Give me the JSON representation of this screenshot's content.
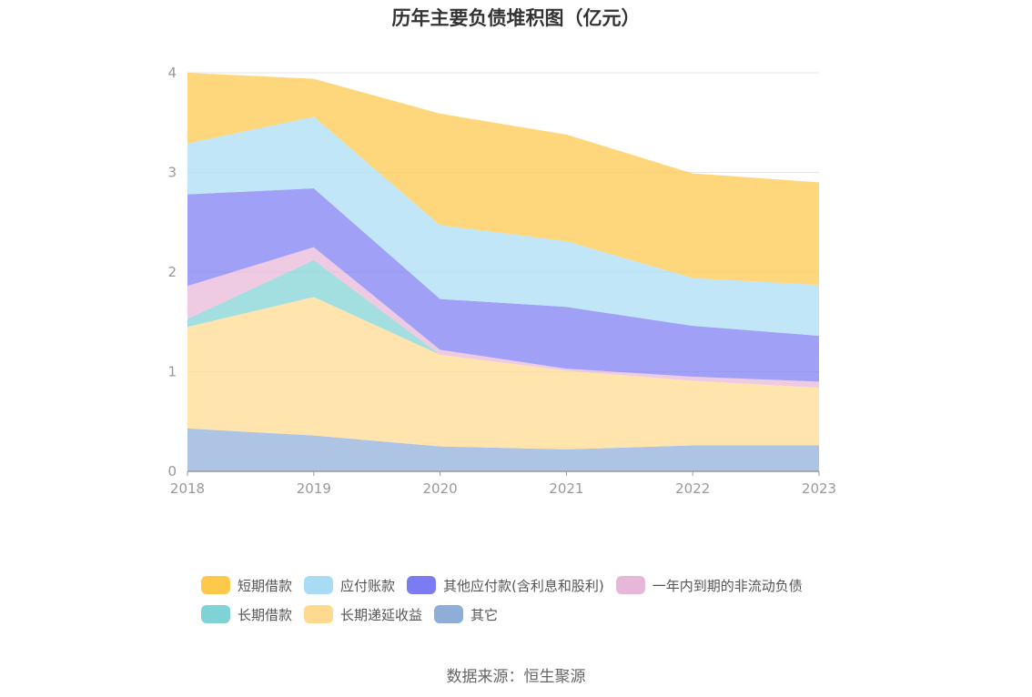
{
  "title": "历年主要负债堆积图（亿元）",
  "source": "数据来源：恒生聚源",
  "chart_data": {
    "type": "area",
    "stacked": true,
    "x": [
      "2018",
      "2019",
      "2020",
      "2021",
      "2022",
      "2023"
    ],
    "ylim": [
      0,
      4
    ],
    "yticks": [
      "0",
      "1",
      "2",
      "3",
      "4"
    ],
    "grid": true,
    "legend_position": "bottom",
    "series": [
      {
        "name": "其它",
        "color": "#8fadd9",
        "values": [
          0.43,
          0.36,
          0.25,
          0.22,
          0.26,
          0.26
        ]
      },
      {
        "name": "长期递延收益",
        "color": "#ffd98f",
        "values": [
          1.02,
          1.39,
          0.92,
          0.79,
          0.65,
          0.58
        ]
      },
      {
        "name": "长期借款",
        "color": "#7fd3d4",
        "values": [
          0.08,
          0.37,
          0.0,
          0.0,
          0.0,
          0.0
        ]
      },
      {
        "name": "一年内到期的非流动负债",
        "color": "#e8b6d8",
        "values": [
          0.33,
          0.13,
          0.05,
          0.02,
          0.04,
          0.06
        ]
      },
      {
        "name": "其他应付款(含利息和股利)",
        "color": "#7b7cf2",
        "values": [
          0.92,
          0.59,
          0.51,
          0.62,
          0.51,
          0.46
        ]
      },
      {
        "name": "应付账款",
        "color": "#a8dcf5",
        "values": [
          0.51,
          0.72,
          0.74,
          0.66,
          0.48,
          0.51
        ]
      },
      {
        "name": "短期借款",
        "color": "#fec84b",
        "values": [
          0.71,
          0.38,
          1.12,
          1.07,
          1.05,
          1.03
        ]
      }
    ],
    "legend_order": [
      "短期借款",
      "应付账款",
      "其他应付款(含利息和股利)",
      "一年内到期的非流动负债",
      "长期借款",
      "长期递延收益",
      "其它"
    ]
  }
}
